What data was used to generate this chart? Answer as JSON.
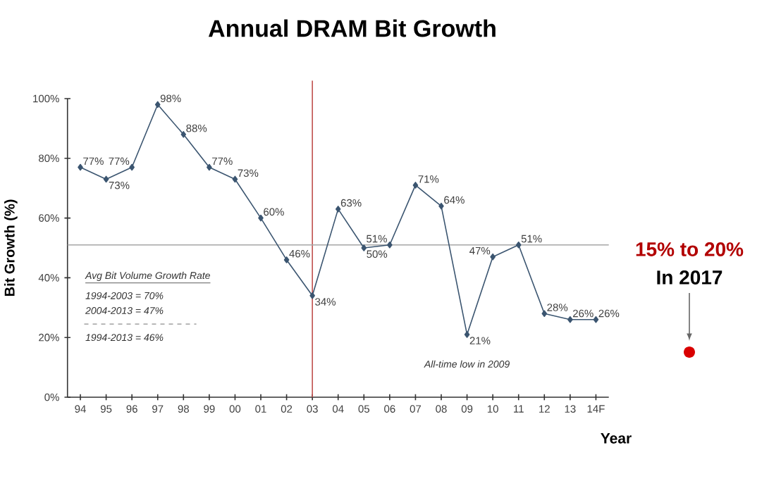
{
  "chart_data": {
    "type": "line",
    "title": "Annual DRAM Bit Growth",
    "xlabel": "Year",
    "ylabel": "Bit Growth (%)",
    "categories": [
      "94",
      "95",
      "96",
      "97",
      "98",
      "99",
      "00",
      "01",
      "02",
      "03",
      "04",
      "05",
      "06",
      "07",
      "08",
      "09",
      "10",
      "11",
      "12",
      "13",
      "14F"
    ],
    "series": [
      {
        "color": "#3b5570",
        "values": [
          77,
          73,
          77,
          98,
          88,
          77,
          73,
          60,
          46,
          34,
          63,
          50,
          51,
          71,
          64,
          21,
          47,
          51,
          28,
          26,
          26
        ],
        "value_labels": [
          "77%",
          "73%",
          "77%",
          "98%",
          "88%",
          "77%",
          "73%",
          "60%",
          "46%",
          "34%",
          "63%",
          "50%",
          "51%",
          "71%",
          "64%",
          "21%",
          "47%",
          "51%",
          "28%",
          "26%",
          "26%"
        ]
      }
    ],
    "ylim": [
      0,
      100
    ],
    "yticks": [
      {
        "value": 0,
        "label": "0%"
      },
      {
        "value": 20,
        "label": "20%"
      },
      {
        "value": 40,
        "label": "40%"
      },
      {
        "value": 60,
        "label": "60%"
      },
      {
        "value": 80,
        "label": "80%"
      },
      {
        "value": 100,
        "label": "100%"
      }
    ],
    "marker": "diamond",
    "ref_lines": [
      {
        "axis": "x",
        "value": "03",
        "color": "#c0504d"
      },
      {
        "axis": "y",
        "value": 51,
        "color": "#a6a6a6"
      }
    ],
    "annotations": [
      "Avg Bit Volume Growth Rate",
      "1994-2003 = 70%",
      "2004-2013 = 47%",
      "1994-2013 = 46%",
      {
        "text": "All-time low in 2009",
        "x": "09",
        "y": 21
      },
      "15% to 20%",
      "In 2017"
    ]
  }
}
